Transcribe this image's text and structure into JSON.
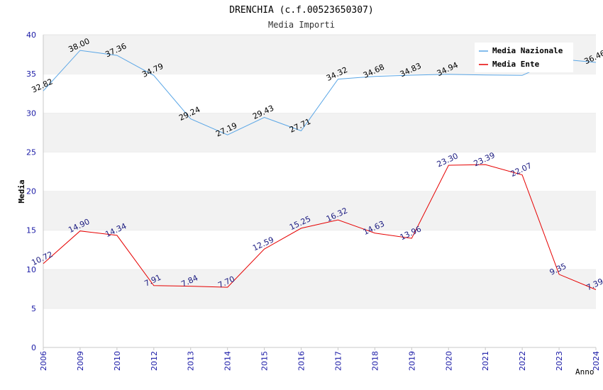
{
  "chart_data": {
    "type": "line",
    "title": "DRENCHIA (c.f.00523650307)",
    "subtitle": "Media Importi",
    "xlabel": "Anno",
    "ylabel": "Media",
    "ylim": [
      0,
      40
    ],
    "yticks": [
      "0",
      "5",
      "10",
      "15",
      "20",
      "25",
      "30",
      "35",
      "40"
    ],
    "grid": true,
    "legend_position": "top-right",
    "categories": [
      "2006",
      "2009",
      "2010",
      "2012",
      "2013",
      "2014",
      "2015",
      "2016",
      "2017",
      "2018",
      "2019",
      "2020",
      "2021",
      "2022",
      "2023",
      "2024"
    ],
    "series": [
      {
        "name": "Media Nazionale",
        "color": "#5aa6e6",
        "values": [
          32.82,
          38.0,
          37.36,
          34.79,
          29.24,
          27.19,
          29.43,
          27.71,
          34.32,
          34.68,
          34.83,
          34.94,
          34.85,
          34.8,
          36.9,
          36.46
        ],
        "labels": [
          "32.82",
          "38.00",
          "37.36",
          "34.79",
          "29.24",
          "27.19",
          "29.43",
          "27.71",
          "34.32",
          "34.68",
          "34.83",
          "34.94",
          "",
          "",
          "",
          "36.46"
        ]
      },
      {
        "name": "Media Ente",
        "color": "#e60000",
        "values": [
          10.72,
          14.9,
          14.34,
          7.91,
          7.84,
          7.7,
          12.59,
          15.25,
          16.32,
          14.63,
          13.96,
          23.3,
          23.39,
          22.07,
          9.35,
          7.39
        ],
        "labels": [
          "10.72",
          "14.90",
          "14.34",
          "7.91",
          "7.84",
          "7.70",
          "12.59",
          "15.25",
          "16.32",
          "14.63",
          "13.96",
          "23.30",
          "23.39",
          "22.07",
          "9.35",
          "7.39"
        ]
      }
    ]
  }
}
